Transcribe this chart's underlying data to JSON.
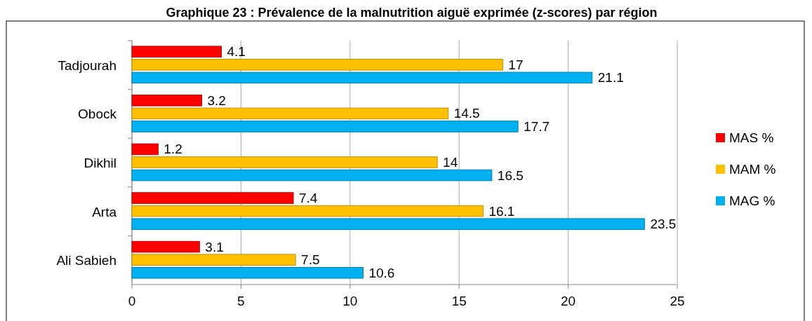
{
  "chart_data": {
    "type": "bar",
    "orientation": "horizontal",
    "title": "Graphique 23 : Prévalence de la malnutrition aiguë exprimée (z-scores) par région",
    "categories": [
      "Tadjourah",
      "Obock",
      "Dikhil",
      "Arta",
      "Ali Sabieh"
    ],
    "series": [
      {
        "name": "MAS %",
        "color": "#ff0000",
        "values": [
          4.1,
          3.2,
          1.2,
          7.4,
          3.1
        ]
      },
      {
        "name": "MAM %",
        "color": "#ffc000",
        "values": [
          17,
          14.5,
          14,
          16.1,
          7.5
        ]
      },
      {
        "name": "MAG %",
        "color": "#00b0f0",
        "values": [
          21.1,
          17.7,
          16.5,
          23.5,
          10.6
        ]
      }
    ],
    "xlim": [
      0,
      25
    ],
    "xticks": [
      0,
      5,
      10,
      15,
      20,
      25
    ],
    "grid": "x",
    "legend": "right",
    "data_labels": true
  }
}
